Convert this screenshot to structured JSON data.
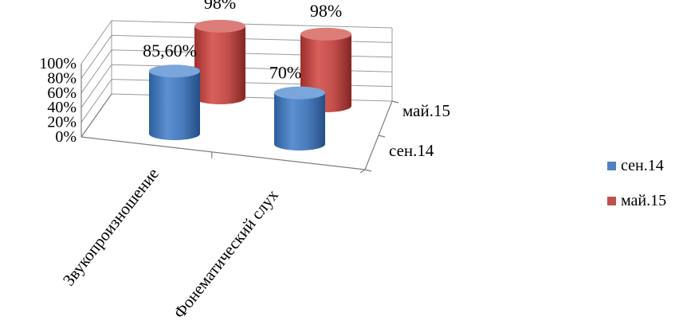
{
  "chart_data": {
    "type": "bar",
    "style": "3d-cylinder",
    "title": "",
    "xlabel": "",
    "ylabel": "",
    "categories": [
      "Звукопроизношение",
      "Фонематический слух"
    ],
    "series": [
      {
        "name": "сен.14",
        "values": [
          85.6,
          70
        ],
        "labels": [
          "85,60%",
          "70%"
        ],
        "color": "#4f81bd"
      },
      {
        "name": "май.15",
        "values": [
          98,
          98
        ],
        "labels": [
          "98%",
          "98%"
        ],
        "color": "#c0504d"
      }
    ],
    "ylim": [
      0,
      100
    ],
    "yticks": [
      "0%",
      "20%",
      "40%",
      "60%",
      "80%",
      "100%"
    ],
    "grid": true,
    "legend": "right"
  }
}
